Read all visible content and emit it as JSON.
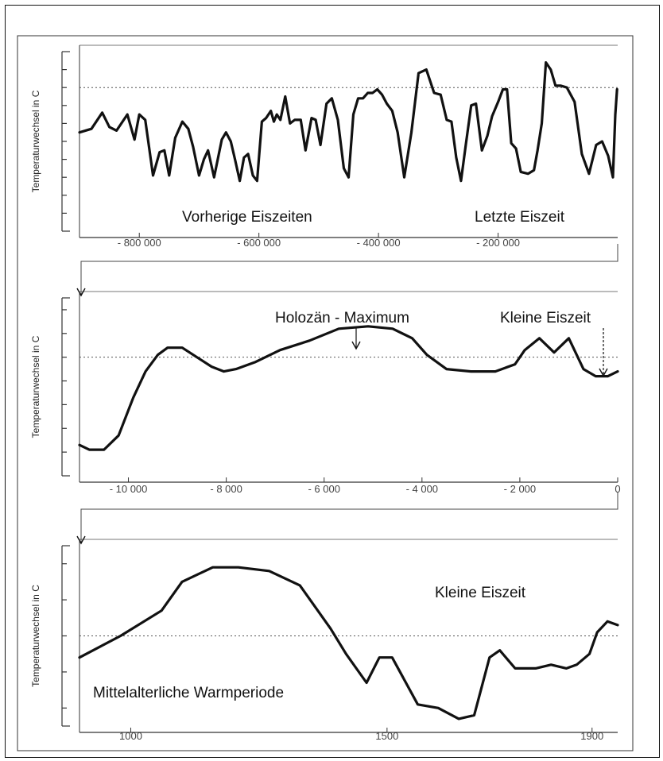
{
  "chart_data": [
    {
      "type": "line",
      "ylabel": "Temperaturwechsel in C",
      "annotations": [
        "Vorherige Eiszeiten",
        "Letzte Eiszeit"
      ],
      "x_ticks": [
        {
          "value": -800000,
          "label": "- 800 000"
        },
        {
          "value": -600000,
          "label": "- 600 000"
        },
        {
          "value": -400000,
          "label": "- 400 000"
        },
        {
          "value": -200000,
          "label": "- 200 000"
        }
      ],
      "xlim": [
        -900000,
        0
      ],
      "ylim": [
        -8,
        2
      ],
      "y_ticks": [
        -7,
        -6,
        -5,
        -4,
        -3,
        -2,
        -1,
        0,
        1
      ],
      "reference_y": 0,
      "x": [
        -900000,
        -880000,
        -862000,
        -850000,
        -838000,
        -820000,
        -808000,
        -800000,
        -790000,
        -777000,
        -766000,
        -758000,
        -750000,
        -740000,
        -728000,
        -718000,
        -710000,
        -700000,
        -692000,
        -685000,
        -675000,
        -662000,
        -655000,
        -647000,
        -640000,
        -632000,
        -625000,
        -618000,
        -610000,
        -603000,
        -595000,
        -588000,
        -580000,
        -575000,
        -570000,
        -564000,
        -556000,
        -548000,
        -540000,
        -530000,
        -522000,
        -512000,
        -505000,
        -497000,
        -487000,
        -478000,
        -468000,
        -458000,
        -450000,
        -442000,
        -434000,
        -426000,
        -418000,
        -410000,
        -402000,
        -394000,
        -386000,
        -377000,
        -368000,
        -357000,
        -345000,
        -333000,
        -320000,
        -307000,
        -296000,
        -286000,
        -278000,
        -270000,
        -262000,
        -254000,
        -245000,
        -237000,
        -227000,
        -218000,
        -210000,
        -200000,
        -192000,
        -185000,
        -178000,
        -170000,
        -162000,
        -150000,
        -140000,
        -134000,
        -127000,
        -120000,
        -112000,
        -104000,
        -95000,
        -85000,
        -72000,
        -60000,
        -48000,
        -36000,
        -26000,
        -16000,
        -8000,
        -4000,
        -1000
      ],
      "y": [
        -2.5,
        -2.3,
        -1.4,
        -2.2,
        -2.4,
        -1.5,
        -2.9,
        -1.5,
        -1.8,
        -4.9,
        -3.6,
        -3.5,
        -4.9,
        -2.8,
        -1.9,
        -2.3,
        -3.3,
        -4.9,
        -4.0,
        -3.5,
        -5.0,
        -2.9,
        -2.5,
        -3.0,
        -4.0,
        -5.2,
        -3.9,
        -3.7,
        -4.9,
        -5.2,
        -1.9,
        -1.7,
        -1.3,
        -1.9,
        -1.5,
        -1.8,
        -0.5,
        -2.0,
        -1.8,
        -1.8,
        -3.5,
        -1.7,
        -1.8,
        -3.2,
        -0.9,
        -0.6,
        -1.8,
        -4.5,
        -5.0,
        -1.5,
        -0.6,
        -0.6,
        -0.3,
        -0.3,
        -0.1,
        -0.4,
        -0.9,
        -1.3,
        -2.5,
        -5.0,
        -2.5,
        0.8,
        1.0,
        -0.3,
        -0.4,
        -1.8,
        -1.9,
        -3.9,
        -5.2,
        -3.2,
        -1.0,
        -0.9,
        -3.5,
        -2.7,
        -1.6,
        -0.8,
        -0.1,
        -0.1,
        -3.1,
        -3.4,
        -4.7,
        -4.8,
        -4.6,
        -3.5,
        -2.0,
        1.4,
        1.0,
        0.1,
        0.1,
        0.0,
        -0.8,
        -3.7,
        -4.8,
        -3.2,
        -3.0,
        -3.8,
        -5.0,
        -1.5,
        -0.1
      ]
    },
    {
      "type": "line",
      "ylabel": "Temperaturwechsel in C",
      "annotations": [
        "Holozän - Maximum",
        "Kleine Eiszeit"
      ],
      "x_ticks": [
        {
          "value": -10000,
          "label": "- 10 000"
        },
        {
          "value": -8000,
          "label": "- 8 000"
        },
        {
          "value": -6000,
          "label": "- 6 000"
        },
        {
          "value": -4000,
          "label": "- 4 000"
        },
        {
          "value": -2000,
          "label": "- 2 000"
        },
        {
          "value": 0,
          "label": "0"
        }
      ],
      "xlim": [
        -11000,
        0
      ],
      "ylim": [
        -5,
        2.5
      ],
      "y_ticks": [
        -4,
        -3,
        -2,
        -1,
        0,
        1,
        2
      ],
      "reference_y": 0,
      "x": [
        -11000,
        -10800,
        -10500,
        -10200,
        -9900,
        -9650,
        -9400,
        -9200,
        -8900,
        -8600,
        -8300,
        -8050,
        -7800,
        -7400,
        -6900,
        -6300,
        -5700,
        -5100,
        -4600,
        -4200,
        -3900,
        -3500,
        -3000,
        -2500,
        -2100,
        -1900,
        -1600,
        -1300,
        -1000,
        -700,
        -450,
        -200,
        0
      ],
      "y": [
        -3.7,
        -3.9,
        -3.9,
        -3.3,
        -1.7,
        -0.6,
        0.1,
        0.4,
        0.4,
        0.0,
        -0.4,
        -0.6,
        -0.5,
        -0.2,
        0.3,
        0.7,
        1.2,
        1.3,
        1.2,
        0.8,
        0.1,
        -0.5,
        -0.6,
        -0.6,
        -0.3,
        0.3,
        0.8,
        0.2,
        0.8,
        -0.5,
        -0.8,
        -0.8,
        -0.6
      ]
    },
    {
      "type": "line",
      "ylabel": "Temperaturwechsel in C",
      "annotations": [
        "Kleine Eiszeit",
        "Mittelalterliche Warmperiode"
      ],
      "x_ticks": [
        {
          "value": 1000,
          "label": "1000"
        },
        {
          "value": 1500,
          "label": "1500"
        },
        {
          "value": 1900,
          "label": "1900"
        }
      ],
      "xlim": [
        900,
        1950
      ],
      "ylim": [
        -2.5,
        2.5
      ],
      "y_ticks": [
        -2,
        -1,
        0,
        1,
        2
      ],
      "reference_y": 0,
      "x": [
        900,
        980,
        1060,
        1100,
        1160,
        1210,
        1270,
        1330,
        1390,
        1420,
        1460,
        1485,
        1510,
        1560,
        1600,
        1640,
        1670,
        1700,
        1720,
        1750,
        1790,
        1820,
        1850,
        1870,
        1895,
        1910,
        1930,
        1950
      ],
      "y": [
        -0.6,
        0.0,
        0.7,
        1.5,
        1.9,
        1.9,
        1.8,
        1.4,
        0.2,
        -0.5,
        -1.3,
        -0.6,
        -0.6,
        -1.9,
        -2.0,
        -2.3,
        -2.2,
        -0.6,
        -0.4,
        -0.9,
        -0.9,
        -0.8,
        -0.9,
        -0.8,
        -0.5,
        0.1,
        0.4,
        0.3
      ]
    }
  ]
}
